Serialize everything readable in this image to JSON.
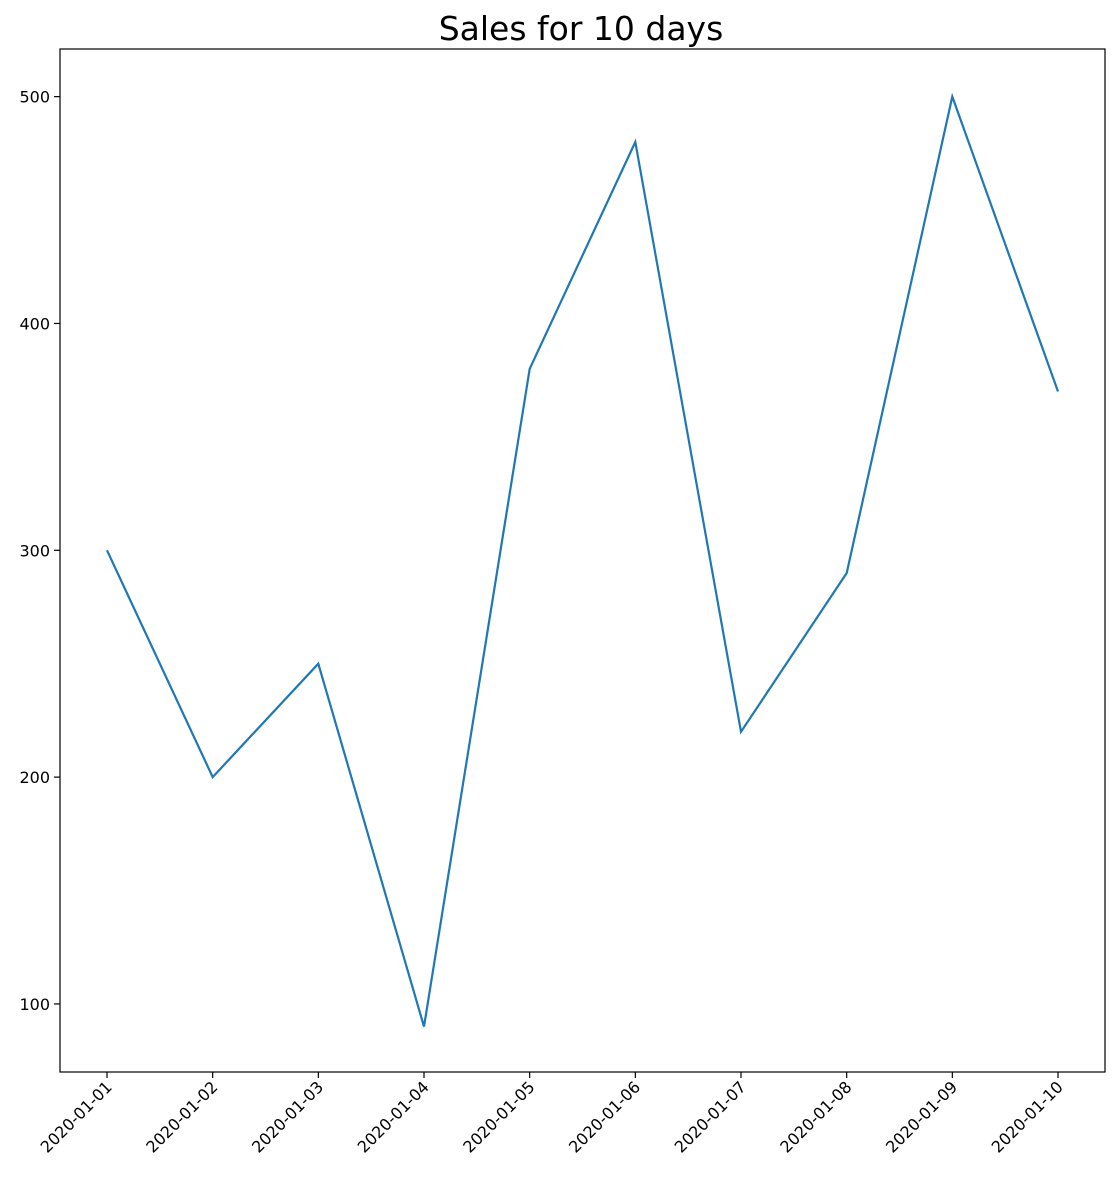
{
  "chart_data": {
    "type": "line",
    "title": "Sales for 10 days",
    "xlabel": "",
    "ylabel": "",
    "x": [
      "2020-01-01",
      "2020-01-02",
      "2020-01-03",
      "2020-01-04",
      "2020-01-05",
      "2020-01-06",
      "2020-01-07",
      "2020-01-08",
      "2020-01-09",
      "2020-01-10"
    ],
    "series": [
      {
        "values": [
          300,
          200,
          250,
          90,
          380,
          480,
          220,
          290,
          500,
          370
        ],
        "color": "#1f77b4"
      }
    ],
    "ylim": [
      70,
      521
    ],
    "yticks": [
      100,
      200,
      300,
      400,
      500
    ],
    "grid": false,
    "legend": "none"
  }
}
